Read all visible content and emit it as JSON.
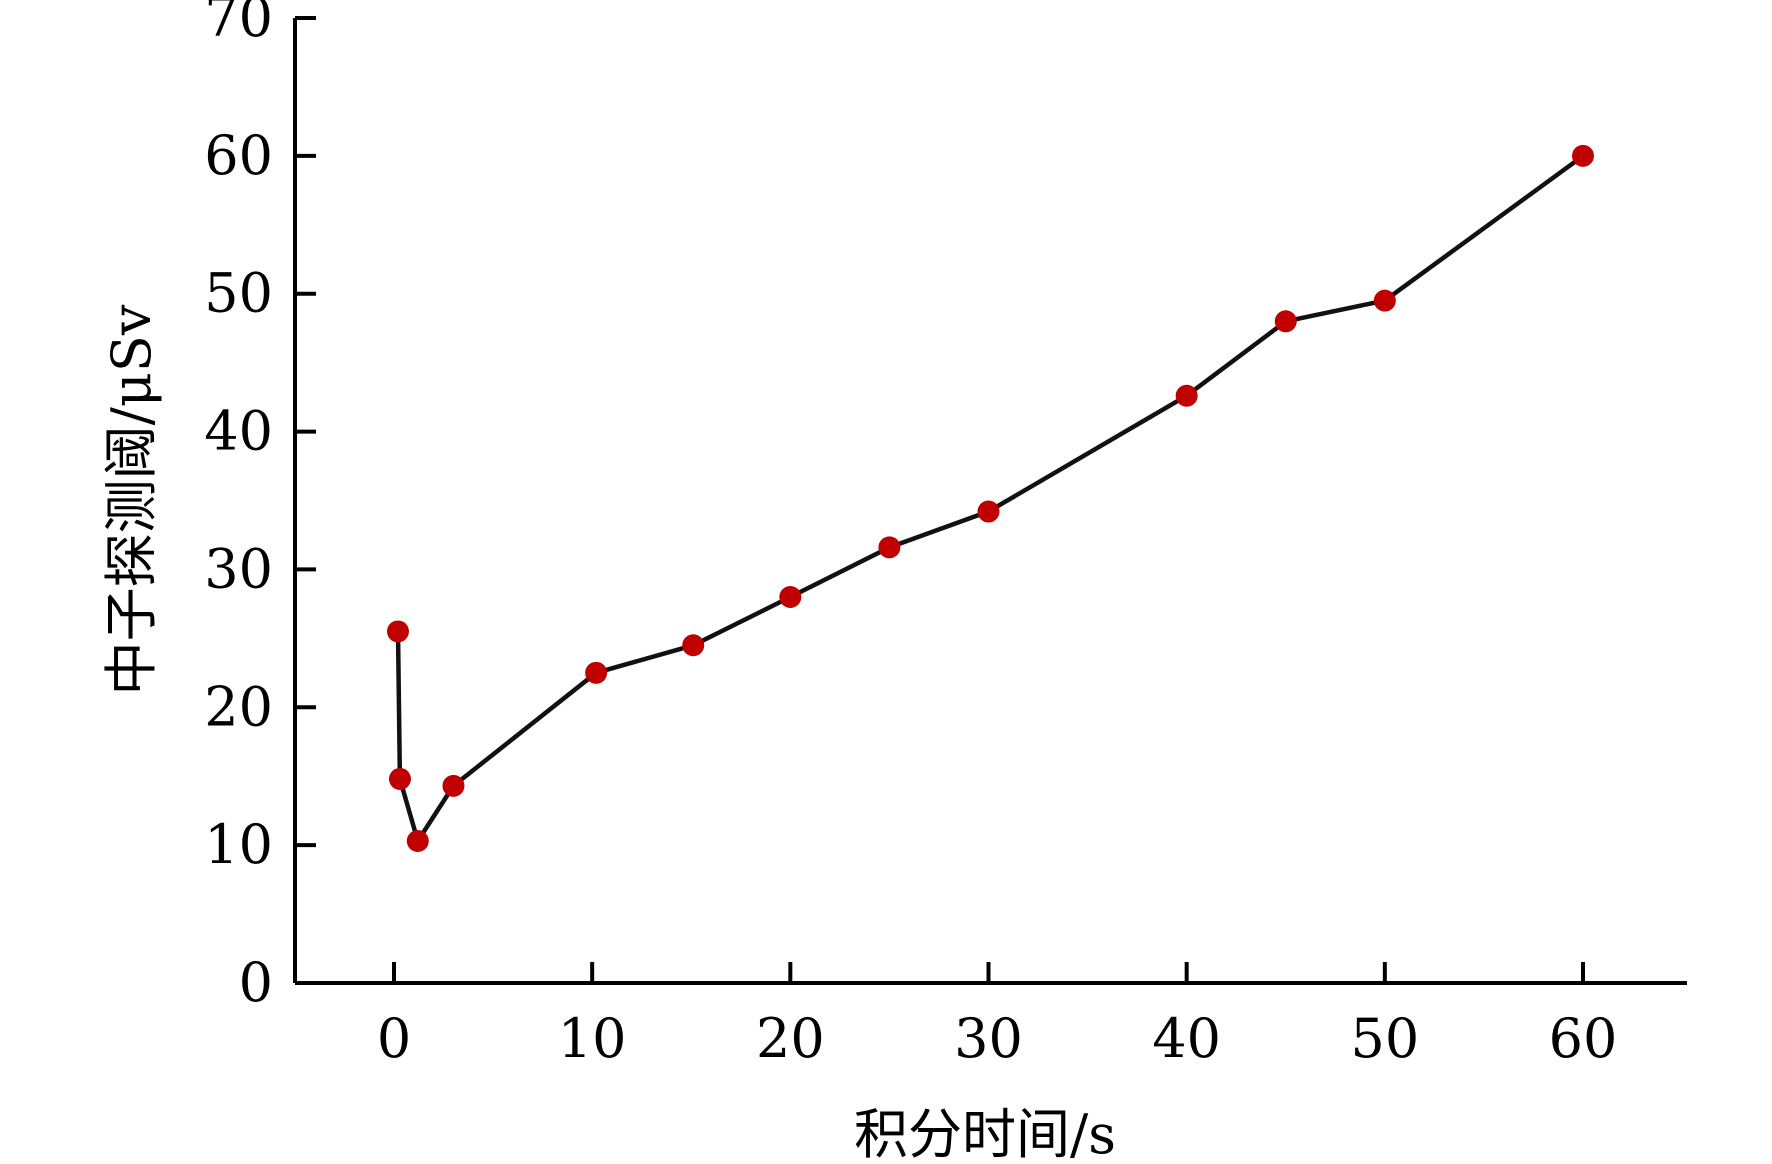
{
  "chart_data": {
    "type": "line",
    "title": "",
    "xlabel": "积分时间/s",
    "ylabel": "中子探测阈/μSv",
    "xlim": [
      -5,
      65
    ],
    "ylim": [
      0,
      70
    ],
    "x_ticks": [
      0,
      10,
      20,
      30,
      40,
      50,
      60
    ],
    "y_ticks": [
      0,
      10,
      20,
      30,
      40,
      50,
      60,
      70
    ],
    "x_tick_labels": [
      "0",
      "10",
      "20",
      "30",
      "40",
      "50",
      "60"
    ],
    "y_tick_labels": [
      "0",
      "10",
      "20",
      "30",
      "40",
      "50",
      "60",
      "70"
    ],
    "grid": false,
    "legend": "none",
    "series": [
      {
        "x": [
          0.2,
          0.3,
          1.2,
          3.0,
          10.2,
          15.1,
          20.0,
          25.0,
          30.0,
          40.0,
          45.0,
          50.0,
          60.0
        ],
        "y": [
          25.5,
          14.8,
          10.3,
          14.3,
          22.5,
          24.5,
          28.0,
          31.6,
          34.2,
          42.6,
          48.0,
          49.5,
          60.0
        ],
        "line_color": "#111111",
        "marker_color": "#c00000"
      }
    ]
  }
}
